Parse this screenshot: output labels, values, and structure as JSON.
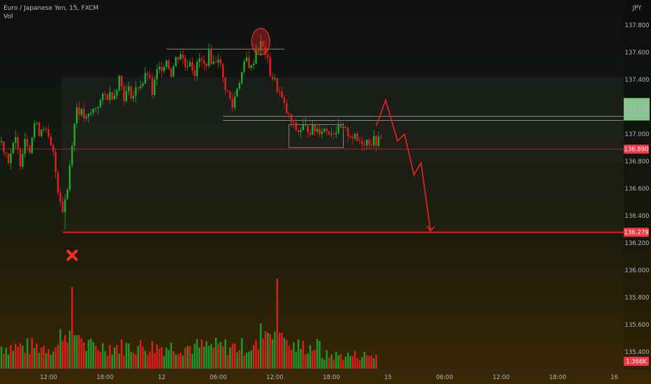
{
  "header": {
    "symbol_title": "Euro / Japanese Yen, 15, FXCM",
    "volume_label": "Vol",
    "currency": "JPY"
  },
  "chart_data": {
    "type": "candlestick",
    "ylim": [
      135.165,
      137.985
    ],
    "volume_ylim": [
      0,
      1.0
    ],
    "y_ticks": [
      "137.800",
      "137.600",
      "137.400",
      "137.000",
      "136.800",
      "136.600",
      "136.400",
      "136.200",
      "136.000",
      "135.800",
      "135.600",
      "135.400"
    ],
    "y_tick_values": [
      137.8,
      137.6,
      137.4,
      137.0,
      136.8,
      136.6,
      136.4,
      136.2,
      136.0,
      135.8,
      135.6,
      135.4
    ],
    "x_ticks": [
      "12:00",
      "18:00",
      "12",
      "06:00",
      "12:00",
      "18:00",
      "15",
      "06:00",
      "12:00",
      "18:00",
      "16"
    ],
    "x_tick_index": [
      20,
      44,
      68,
      92,
      116,
      140,
      164,
      188,
      212,
      236,
      260
    ],
    "candle_count": 162,
    "current_price": {
      "label": "136.890",
      "value": 136.89,
      "color": "#f23645"
    },
    "target_price": {
      "label": "136.279",
      "value": 136.279,
      "color": "#f23645"
    },
    "green_zone_label": "137.200",
    "volume_label": "1.366K",
    "annotations": {
      "top_resistance": 137.625,
      "support_upper": 137.13,
      "support_lower": 137.1,
      "range_high": 137.07,
      "range_low": 136.9,
      "zone_top": 137.42,
      "zone_bottom": 136.8,
      "projection_path": [
        [
          159,
          137.06
        ],
        [
          163,
          137.25
        ],
        [
          168,
          136.95
        ],
        [
          171,
          137.0
        ],
        [
          175,
          136.7
        ],
        [
          178,
          136.79
        ],
        [
          182,
          136.29
        ]
      ],
      "invalidation_marker_index": 3
    },
    "colors": {
      "up": "#26a69a",
      "up_candle": "#22ab2a",
      "down": "#f23645",
      "down_candle": "#e51f1f",
      "vol_up": "#1f9a2a",
      "vol_down": "#e31c1c",
      "axis_text": "#b2b5be",
      "green_zone": "#9fe3a5"
    }
  }
}
